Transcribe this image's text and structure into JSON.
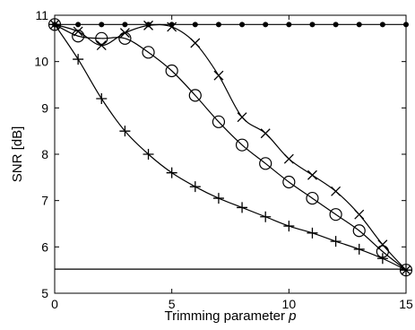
{
  "chart_data": {
    "type": "line",
    "title": "",
    "xlabel": "Trimming parameter p",
    "xlabel_main": "Trimming parameter ",
    "xlabel_var": "p",
    "ylabel": "SNR [dB]",
    "xlim": [
      0,
      15
    ],
    "ylim": [
      5,
      11
    ],
    "xticks": [
      0,
      5,
      10,
      15
    ],
    "yticks": [
      5,
      6,
      7,
      8,
      9,
      10,
      11
    ],
    "xtick_labels": [
      "0",
      "5",
      "10",
      "15"
    ],
    "ytick_labels": [
      "5",
      "6",
      "7",
      "8",
      "9",
      "10",
      "11"
    ],
    "grid": false,
    "legend": "none",
    "color": "#000000",
    "series": [
      {
        "marker": "dot",
        "line": "solid",
        "x": [
          0,
          1,
          2,
          3,
          4,
          5,
          6,
          7,
          8,
          9,
          10,
          11,
          12,
          13,
          14,
          15
        ],
        "y": [
          10.8,
          10.8,
          10.8,
          10.8,
          10.8,
          10.8,
          10.8,
          10.8,
          10.8,
          10.8,
          10.8,
          10.8,
          10.8,
          10.8,
          10.8,
          10.8
        ]
      },
      {
        "marker": "none",
        "line": "solid",
        "x": [
          0,
          15
        ],
        "y": [
          5.52,
          5.52
        ]
      },
      {
        "marker": "circle",
        "line": "solid",
        "x": [
          0,
          1,
          2,
          3,
          4,
          5,
          6,
          7,
          8,
          9,
          10,
          11,
          12,
          13,
          14,
          15
        ],
        "y": [
          10.8,
          10.55,
          10.5,
          10.5,
          10.2,
          9.8,
          9.27,
          8.7,
          8.2,
          7.8,
          7.4,
          7.05,
          6.7,
          6.35,
          5.9,
          5.5
        ]
      },
      {
        "marker": "cross",
        "line": "solid",
        "x": [
          0,
          1,
          2,
          3,
          4,
          5,
          6,
          7,
          8,
          9,
          10,
          11,
          12,
          13,
          14,
          15
        ],
        "y": [
          10.8,
          10.65,
          10.35,
          10.62,
          10.78,
          10.75,
          10.4,
          9.7,
          8.8,
          8.45,
          7.9,
          7.55,
          7.2,
          6.7,
          6.05,
          5.5
        ]
      },
      {
        "marker": "plus",
        "line": "solid",
        "x": [
          0,
          1,
          2,
          3,
          4,
          5,
          6,
          7,
          8,
          9,
          10,
          11,
          12,
          13,
          14,
          15
        ],
        "y": [
          10.8,
          10.05,
          9.2,
          8.5,
          8.0,
          7.6,
          7.3,
          7.05,
          6.85,
          6.65,
          6.45,
          6.3,
          6.12,
          5.95,
          5.75,
          5.5
        ]
      }
    ]
  }
}
